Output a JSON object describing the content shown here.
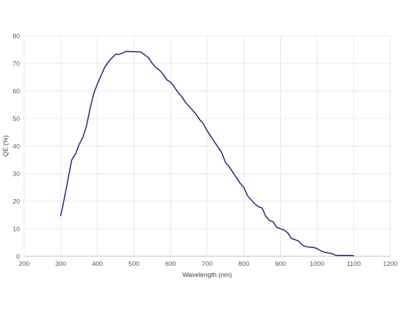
{
  "chart_data": {
    "type": "line",
    "title": "",
    "xlabel": "Wavelength (nm)",
    "ylabel": "QE (%)",
    "xlim": [
      200,
      1200
    ],
    "ylim": [
      0,
      80
    ],
    "x_ticks": [
      200,
      300,
      400,
      500,
      600,
      700,
      800,
      900,
      1000,
      1100,
      1200
    ],
    "y_ticks": [
      0,
      10,
      20,
      30,
      40,
      50,
      60,
      70,
      80
    ],
    "grid": true,
    "legend": "none",
    "series": [
      {
        "color": "#1f2f7a",
        "x": [
          300,
          310,
          320,
          330,
          340,
          350,
          360,
          370,
          380,
          390,
          400,
          410,
          420,
          430,
          440,
          450,
          460,
          470,
          480,
          490,
          500,
          510,
          520,
          530,
          540,
          550,
          560,
          570,
          580,
          590,
          600,
          610,
          620,
          630,
          640,
          650,
          660,
          670,
          680,
          690,
          700,
          710,
          720,
          730,
          740,
          750,
          760,
          770,
          780,
          790,
          800,
          810,
          820,
          830,
          840,
          850,
          860,
          870,
          880,
          890,
          900,
          910,
          920,
          930,
          940,
          950,
          960,
          970,
          980,
          990,
          1000,
          1010,
          1020,
          1030,
          1040,
          1050,
          1060,
          1070,
          1080,
          1090,
          1100
        ],
        "y": [
          14.7,
          21,
          28,
          35,
          37,
          40.5,
          43,
          47,
          53.5,
          59,
          62.5,
          65.5,
          68.5,
          70.5,
          72,
          73.3,
          73.3,
          73.8,
          74.4,
          74.3,
          74.3,
          74.2,
          74.1,
          73,
          72,
          70,
          68.5,
          67.5,
          66,
          64,
          63.2,
          61.5,
          59.5,
          58,
          56,
          54.5,
          53,
          51.5,
          49.5,
          48,
          45.5,
          43.5,
          41.5,
          39.5,
          37.5,
          34,
          32.5,
          30.5,
          28.5,
          26.5,
          25,
          22,
          20.5,
          19,
          18,
          17.5,
          14.5,
          13,
          12.5,
          10.5,
          10,
          9.5,
          8.5,
          6.5,
          6,
          5.5,
          4,
          3.5,
          3.3,
          3.2,
          2.8,
          2,
          1.5,
          1.2,
          1,
          0.4,
          0.3,
          0.3,
          0.3,
          0.3,
          0.2
        ]
      }
    ]
  }
}
